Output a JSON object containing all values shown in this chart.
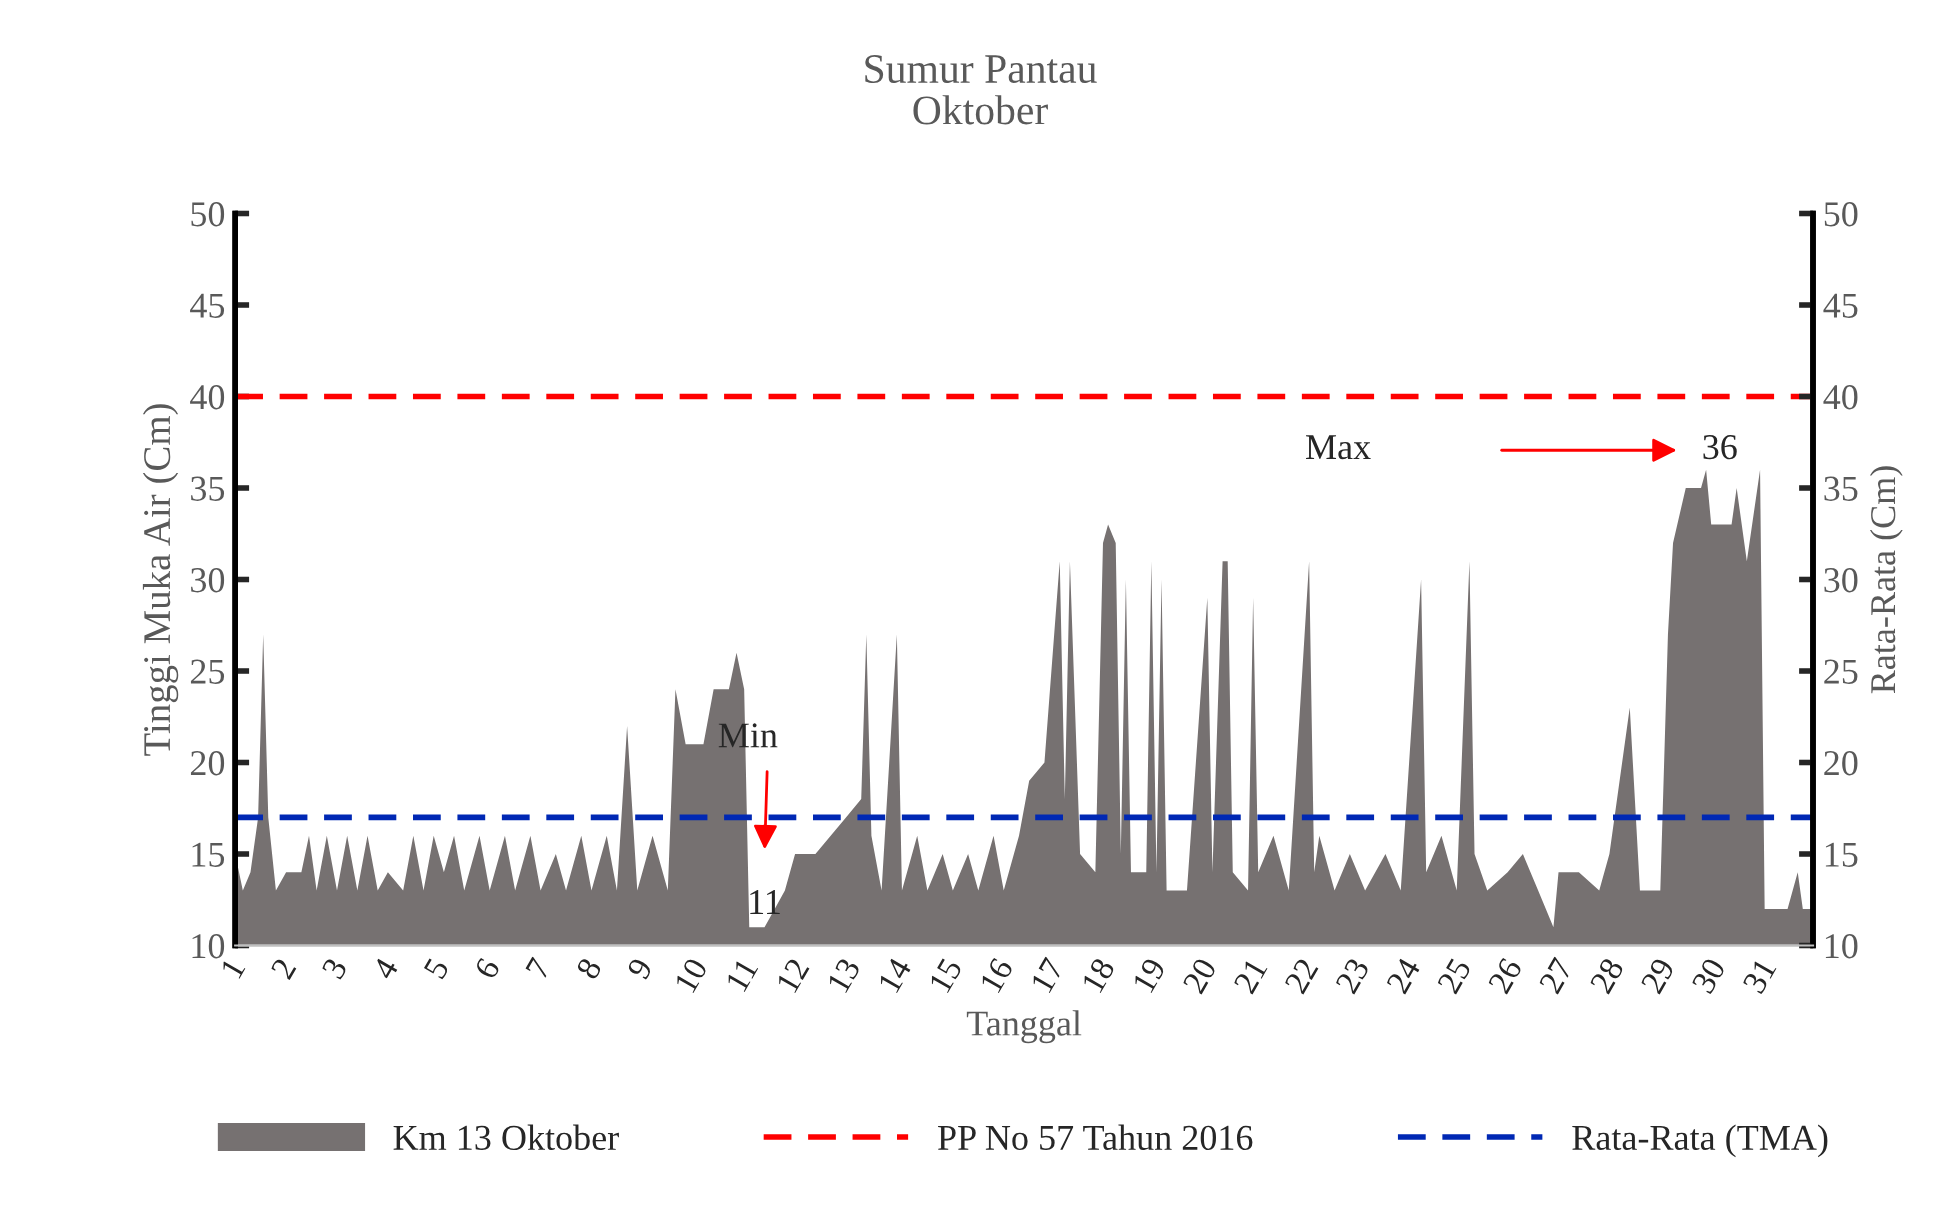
{
  "chart_data": {
    "type": "area",
    "title": "Sumur Pantau",
    "subtitle": "Oktober",
    "xlabel": "Tanggal",
    "ylabel": "Tinggi Muka Air (Cm)",
    "y2label": "Rata-Rata (Cm)",
    "x": [
      1.0,
      1.15,
      1.3,
      1.45,
      1.55,
      1.65,
      1.8,
      2.0,
      2.3,
      2.45,
      2.6,
      2.8,
      3.0,
      3.2,
      3.4,
      3.6,
      3.8,
      4.0,
      4.3,
      4.5,
      4.7,
      4.9,
      5.1,
      5.3,
      5.5,
      5.8,
      6.0,
      6.3,
      6.5,
      6.8,
      7.0,
      7.3,
      7.5,
      7.8,
      8.0,
      8.3,
      8.5,
      8.7,
      8.9,
      9.2,
      9.5,
      9.65,
      9.85,
      10.2,
      10.4,
      10.7,
      10.85,
      11.0,
      11.1,
      11.4,
      11.6,
      11.8,
      12.0,
      12.4,
      12.7,
      13.0,
      13.3,
      13.4,
      13.5,
      13.7,
      14.0,
      14.1,
      14.4,
      14.6,
      14.9,
      15.1,
      15.4,
      15.6,
      15.9,
      16.1,
      16.4,
      16.6,
      16.9,
      17.2,
      17.3,
      17.4,
      17.6,
      17.9,
      18.05,
      18.15,
      18.3,
      18.4,
      18.5,
      18.6,
      18.9,
      19.0,
      19.1,
      19.2,
      19.3,
      19.7,
      20.1,
      20.2,
      20.4,
      20.5,
      20.6,
      20.9,
      21.0,
      21.1,
      21.4,
      21.7,
      22.1,
      22.2,
      22.3,
      22.6,
      22.9,
      23.2,
      23.6,
      23.9,
      24.3,
      24.4,
      24.7,
      25.0,
      25.25,
      25.35,
      25.6,
      26.0,
      26.3,
      26.6,
      26.9,
      27.0,
      27.4,
      27.8,
      28.0,
      28.4,
      28.6,
      29.0,
      29.15,
      29.25,
      29.5,
      29.8,
      29.9,
      30.0,
      30.4,
      30.5,
      30.7,
      30.96,
      31.05,
      31.5,
      31.7,
      31.8,
      32.0
    ],
    "series": [
      {
        "name": "Km 13 Oktober",
        "color": "#767171",
        "values": [
          15,
          13,
          14,
          17,
          27,
          17,
          13,
          14,
          14,
          16,
          13,
          16,
          13,
          16,
          13,
          16,
          13,
          14,
          13,
          16,
          13,
          16,
          14,
          16,
          13,
          16,
          13,
          16,
          13,
          16,
          13,
          15,
          13,
          16,
          13,
          16,
          13,
          22,
          13,
          16,
          13,
          24,
          21,
          21,
          24,
          24,
          26,
          24,
          11,
          11,
          12,
          13,
          15,
          15,
          16,
          17,
          18,
          27,
          16,
          13,
          27,
          13,
          16,
          13,
          15,
          13,
          15,
          13,
          16,
          13,
          16,
          19,
          20,
          31,
          18,
          31,
          15,
          14,
          32,
          33,
          32,
          15,
          30,
          14,
          14,
          31,
          14,
          30,
          13,
          13,
          29,
          14,
          31,
          31,
          14,
          13,
          29,
          14,
          16,
          13,
          31,
          14,
          16,
          13,
          15,
          13,
          15,
          13,
          30,
          14,
          16,
          13,
          31,
          15,
          13,
          14,
          15,
          13,
          11,
          14,
          14,
          13,
          15,
          23,
          13,
          13,
          27,
          32,
          35,
          35,
          36,
          33,
          33,
          35,
          31,
          36,
          12,
          12,
          14,
          12,
          12
        ]
      }
    ],
    "xlim": [
      1,
      32
    ],
    "xticks": [
      1,
      2,
      3,
      4,
      5,
      6,
      7,
      8,
      9,
      10,
      11,
      12,
      13,
      14,
      15,
      16,
      17,
      18,
      19,
      20,
      21,
      22,
      23,
      24,
      25,
      26,
      27,
      28,
      29,
      30,
      31
    ],
    "ylim": [
      10,
      50
    ],
    "yticks": [
      10,
      15,
      20,
      25,
      30,
      35,
      40,
      45,
      50
    ],
    "y2lim": [
      10,
      50
    ],
    "y2ticks": [
      10,
      15,
      20,
      25,
      30,
      35,
      40,
      45,
      50
    ],
    "ref_lines": [
      {
        "axis": "y",
        "value": 40,
        "label": "PP No 57 Tahun 2016",
        "color": "#ff0000",
        "line_style": "dashed"
      },
      {
        "axis": "y",
        "value": 17,
        "label": "Rata-Rata (TMA)",
        "color": "#0028b4",
        "line_style": "dashed"
      }
    ],
    "annotations": [
      "Min",
      {
        "text": "11",
        "x": 11.4,
        "y": 11
      },
      "Max",
      {
        "text": "36",
        "x": 30.96,
        "y": 36
      }
    ],
    "legend": "bottom",
    "grid": false
  }
}
